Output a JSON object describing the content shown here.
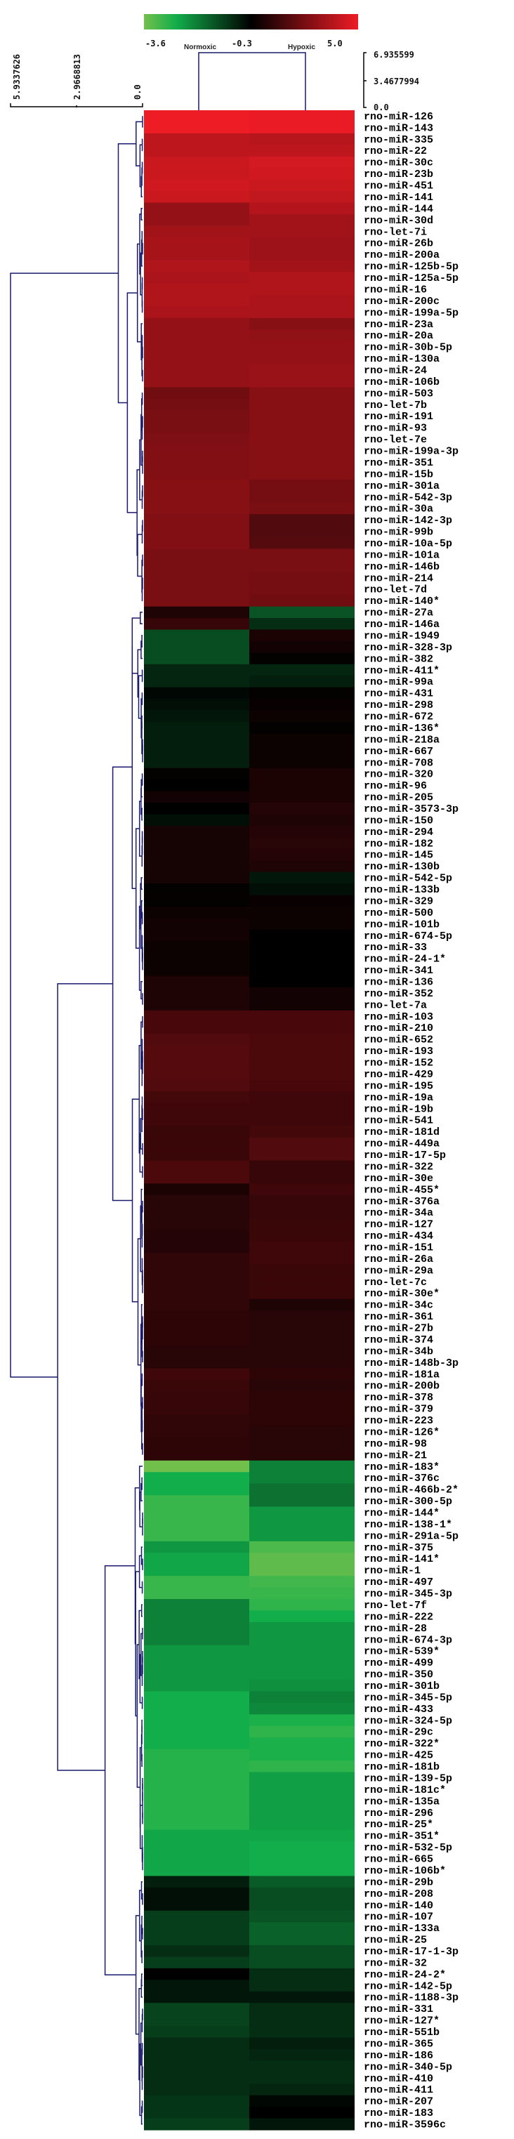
{
  "chart_data": {
    "type": "heatmap",
    "colorscale": {
      "min": -3.6,
      "mid": -0.3,
      "max": 5.0,
      "tick_labels": [
        "-3.6",
        "-0.3",
        "5.0"
      ],
      "colors": {
        "low": "#72c04c",
        "low_mid": "#12ae4b",
        "mid": "#000000",
        "high": "#ee1c25"
      }
    },
    "columns": [
      "Normoxic",
      "Hypoxic"
    ],
    "row_dendrogram_scale": [
      "5.9337626",
      "2.9668813",
      "0.0"
    ],
    "column_dendrogram_scale": [
      "6.935599",
      "3.4677994",
      "0.0"
    ],
    "dendrogram_color": "#1a1a6e",
    "rows": [
      [
        "rno-miR-126",
        5.0,
        4.9
      ],
      [
        "rno-miR-143",
        5.0,
        4.9
      ],
      [
        "rno-miR-335",
        3.9,
        3.8
      ],
      [
        "rno-miR-22",
        3.9,
        3.9
      ],
      [
        "rno-miR-30c",
        4.2,
        4.4
      ],
      [
        "rno-miR-23b",
        4.2,
        4.3
      ],
      [
        "rno-miR-451",
        4.3,
        4.2
      ],
      [
        "rno-miR-141",
        4.2,
        4.0
      ],
      [
        "rno-miR-144",
        3.0,
        3.7
      ],
      [
        "rno-miR-30d",
        3.0,
        3.3
      ],
      [
        "rno-let-7i",
        3.3,
        3.3
      ],
      [
        "rno-miR-26b",
        3.4,
        3.2
      ],
      [
        "rno-miR-200a",
        3.4,
        3.2
      ],
      [
        "rno-miR-125b-5p",
        3.6,
        3.3
      ],
      [
        "rno-miR-125a-5p",
        3.5,
        3.6
      ],
      [
        "rno-miR-16",
        3.6,
        3.6
      ],
      [
        "rno-miR-200c",
        3.6,
        3.5
      ],
      [
        "rno-miR-199a-5p",
        3.5,
        3.5
      ],
      [
        "rno-miR-23a",
        3.0,
        2.7
      ],
      [
        "rno-miR-20a",
        3.0,
        2.9
      ],
      [
        "rno-miR-30b-5p",
        3.0,
        3.0
      ],
      [
        "rno-miR-130a",
        3.0,
        3.0
      ],
      [
        "rno-miR-24",
        3.0,
        3.1
      ],
      [
        "rno-miR-106b",
        3.0,
        3.1
      ],
      [
        "rno-miR-503",
        2.2,
        2.7
      ],
      [
        "rno-let-7b",
        2.3,
        2.7
      ],
      [
        "rno-miR-191",
        2.4,
        2.7
      ],
      [
        "rno-miR-93",
        2.4,
        2.7
      ],
      [
        "rno-let-7e",
        2.5,
        2.7
      ],
      [
        "rno-miR-199a-3p",
        2.6,
        2.7
      ],
      [
        "rno-miR-351",
        2.6,
        2.7
      ],
      [
        "rno-miR-15b",
        2.6,
        2.7
      ],
      [
        "rno-miR-301a",
        2.7,
        2.3
      ],
      [
        "rno-miR-542-3p",
        2.7,
        2.3
      ],
      [
        "rno-miR-30a",
        2.7,
        2.4
      ],
      [
        "rno-miR-142-3p",
        2.6,
        1.5
      ],
      [
        "rno-miR-99b",
        2.6,
        1.5
      ],
      [
        "rno-miR-10a-5p",
        2.6,
        1.6
      ],
      [
        "rno-miR-101a",
        2.4,
        2.4
      ],
      [
        "rno-miR-146b",
        2.4,
        2.4
      ],
      [
        "rno-miR-214",
        2.4,
        2.3
      ],
      [
        "rno-let-7d",
        2.4,
        2.3
      ],
      [
        "rno-miR-140*",
        2.4,
        2.2
      ],
      [
        "rno-miR-27a",
        0.4,
        -1.4
      ],
      [
        "rno-miR-146a",
        0.9,
        -0.9
      ],
      [
        "rno-miR-1949",
        -1.3,
        0.3
      ],
      [
        "rno-miR-328-3p",
        -1.3,
        0.1
      ],
      [
        "rno-miR-382",
        -1.3,
        -0.2
      ],
      [
        "rno-miR-411*",
        -0.8,
        -0.8
      ],
      [
        "rno-miR-99a",
        -0.8,
        -0.7
      ],
      [
        "rno-miR-431",
        -0.4,
        -0.2
      ],
      [
        "rno-miR-298",
        -0.5,
        -0.1
      ],
      [
        "rno-miR-672",
        -0.6,
        0.0
      ],
      [
        "rno-miR-136*",
        -0.7,
        -0.2
      ],
      [
        "rno-miR-218a",
        -0.7,
        0.0
      ],
      [
        "rno-miR-667",
        -0.7,
        0.0
      ],
      [
        "rno-miR-708",
        -0.7,
        0.0
      ],
      [
        "rno-miR-320",
        -0.2,
        0.3
      ],
      [
        "rno-miR-96",
        -0.3,
        0.3
      ],
      [
        "rno-miR-205",
        0.1,
        0.3
      ],
      [
        "rno-miR-3573-3p",
        -0.3,
        0.5
      ],
      [
        "rno-miR-150",
        -0.5,
        0.4
      ],
      [
        "rno-miR-294",
        0.2,
        0.5
      ],
      [
        "rno-miR-182",
        0.2,
        0.6
      ],
      [
        "rno-miR-145",
        0.2,
        0.5
      ],
      [
        "rno-miR-130b",
        0.2,
        0.4
      ],
      [
        "rno-miR-542-5p",
        0.2,
        -0.6
      ],
      [
        "rno-miR-133b",
        -0.2,
        -0.5
      ],
      [
        "rno-miR-329",
        -0.2,
        -0.1
      ],
      [
        "rno-miR-500",
        0.0,
        0.0
      ],
      [
        "rno-miR-101b",
        0.1,
        0.0
      ],
      [
        "rno-miR-674-5p",
        0.1,
        -0.3
      ],
      [
        "rno-miR-33",
        0.0,
        -0.3
      ],
      [
        "rno-miR-24-1*",
        0.0,
        -0.3
      ],
      [
        "rno-miR-341",
        0.0,
        -0.3
      ],
      [
        "rno-miR-136",
        0.4,
        -0.3
      ],
      [
        "rno-miR-352",
        0.4,
        0.1
      ],
      [
        "rno-let-7a",
        0.4,
        0.1
      ],
      [
        "rno-miR-103",
        1.3,
        1.3
      ],
      [
        "rno-miR-210",
        1.3,
        1.3
      ],
      [
        "rno-miR-652",
        1.5,
        1.4
      ],
      [
        "rno-miR-193",
        1.6,
        1.4
      ],
      [
        "rno-miR-152",
        1.6,
        1.4
      ],
      [
        "rno-miR-429",
        1.6,
        1.4
      ],
      [
        "rno-miR-195",
        1.5,
        1.3
      ],
      [
        "rno-miR-19a",
        1.2,
        1.1
      ],
      [
        "rno-miR-19b",
        1.1,
        1.1
      ],
      [
        "rno-miR-541",
        1.1,
        1.1
      ],
      [
        "rno-miR-181d",
        1.0,
        1.2
      ],
      [
        "rno-miR-449a",
        1.0,
        1.5
      ],
      [
        "rno-miR-17-5p",
        1.0,
        1.5
      ],
      [
        "rno-miR-322",
        1.4,
        0.9
      ],
      [
        "rno-miR-30e",
        1.4,
        0.9
      ],
      [
        "rno-miR-455*",
        0.3,
        1.1
      ],
      [
        "rno-miR-376a",
        0.6,
        0.9
      ],
      [
        "rno-miR-34a",
        0.6,
        0.9
      ],
      [
        "rno-miR-127",
        0.6,
        1.0
      ],
      [
        "rno-miR-434",
        0.5,
        1.0
      ],
      [
        "rno-miR-151",
        0.5,
        1.1
      ],
      [
        "rno-miR-26a",
        0.8,
        1.1
      ],
      [
        "rno-miR-29a",
        0.8,
        1.0
      ],
      [
        "rno-let-7c",
        0.8,
        1.0
      ],
      [
        "rno-miR-30e*",
        0.8,
        1.0
      ],
      [
        "rno-miR-34c",
        0.8,
        0.4
      ],
      [
        "rno-miR-361",
        0.7,
        0.6
      ],
      [
        "rno-miR-27b",
        0.7,
        0.6
      ],
      [
        "rno-miR-374",
        0.7,
        0.6
      ],
      [
        "rno-miR-34b",
        0.6,
        0.6
      ],
      [
        "rno-miR-148b-3p",
        0.6,
        0.6
      ],
      [
        "rno-miR-181a",
        1.1,
        0.7
      ],
      [
        "rno-miR-200b",
        1.0,
        0.6
      ],
      [
        "rno-miR-378",
        0.9,
        0.7
      ],
      [
        "rno-miR-379",
        0.9,
        0.7
      ],
      [
        "rno-miR-223",
        0.8,
        0.7
      ],
      [
        "rno-miR-126*",
        0.8,
        0.6
      ],
      [
        "rno-miR-98",
        0.7,
        0.6
      ],
      [
        "rno-miR-21",
        0.7,
        0.6
      ],
      [
        "rno-miR-183*",
        -3.6,
        -2.0
      ],
      [
        "rno-miR-376c",
        -2.6,
        -2.0
      ],
      [
        "rno-miR-466b-2*",
        -2.6,
        -1.8
      ],
      [
        "rno-miR-300-5p",
        -3.0,
        -1.8
      ],
      [
        "rno-miR-144*",
        -3.0,
        -2.3
      ],
      [
        "rno-miR-138-1*",
        -3.0,
        -2.3
      ],
      [
        "rno-miR-291a-5p",
        -3.0,
        -2.3
      ],
      [
        "rno-miR-375",
        -2.3,
        -3.2
      ],
      [
        "rno-miR-141*",
        -2.5,
        -3.4
      ],
      [
        "rno-miR-1",
        -2.5,
        -3.4
      ],
      [
        "rno-miR-497",
        -3.0,
        -3.1
      ],
      [
        "rno-miR-345-3p",
        -3.0,
        -3.0
      ],
      [
        "rno-let-7f",
        -2.0,
        -2.9
      ],
      [
        "rno-miR-222",
        -2.0,
        -2.6
      ],
      [
        "rno-miR-28",
        -2.0,
        -2.3
      ],
      [
        "rno-miR-674-3p",
        -2.0,
        -2.3
      ],
      [
        "rno-miR-539*",
        -2.3,
        -2.3
      ],
      [
        "rno-miR-499",
        -2.3,
        -2.3
      ],
      [
        "rno-miR-350",
        -2.3,
        -2.3
      ],
      [
        "rno-miR-301b",
        -2.3,
        -2.2
      ],
      [
        "rno-miR-345-5p",
        -2.6,
        -2.0
      ],
      [
        "rno-miR-433",
        -2.6,
        -2.1
      ],
      [
        "rno-miR-324-5p",
        -2.6,
        -2.7
      ],
      [
        "rno-miR-29c",
        -2.6,
        -2.9
      ],
      [
        "rno-miR-322*",
        -2.6,
        -2.7
      ],
      [
        "rno-miR-425",
        -2.8,
        -2.7
      ],
      [
        "rno-miR-181b",
        -2.8,
        -2.9
      ],
      [
        "rno-miR-139-5p",
        -2.8,
        -2.4
      ],
      [
        "rno-miR-181c*",
        -2.8,
        -2.4
      ],
      [
        "rno-miR-135a",
        -2.8,
        -2.4
      ],
      [
        "rno-miR-296",
        -2.8,
        -2.4
      ],
      [
        "rno-miR-25*",
        -2.8,
        -2.4
      ],
      [
        "rno-miR-351*",
        -2.5,
        -2.5
      ],
      [
        "rno-miR-532-5p",
        -2.5,
        -2.6
      ],
      [
        "rno-miR-665",
        -2.5,
        -2.6
      ],
      [
        "rno-miR-106b*",
        -2.5,
        -2.6
      ],
      [
        "rno-miR-29b",
        -0.7,
        -1.5
      ],
      [
        "rno-miR-208",
        -0.5,
        -1.3
      ],
      [
        "rno-miR-140",
        -0.5,
        -1.3
      ],
      [
        "rno-miR-107",
        -1.1,
        -1.4
      ],
      [
        "rno-miR-133a",
        -1.1,
        -1.6
      ],
      [
        "rno-miR-25",
        -1.1,
        -1.6
      ],
      [
        "rno-miR-17-1-3p",
        -0.9,
        -1.3
      ],
      [
        "rno-miR-32",
        -1.1,
        -1.3
      ],
      [
        "rno-miR-24-2*",
        -0.3,
        -0.9
      ],
      [
        "rno-miR-142-5p",
        -0.6,
        -0.9
      ],
      [
        "rno-miR-1188-3p",
        -0.6,
        -0.6
      ],
      [
        "rno-miR-331",
        -1.2,
        -0.9
      ],
      [
        "rno-miR-127*",
        -1.2,
        -0.9
      ],
      [
        "rno-miR-551b",
        -1.1,
        -0.9
      ],
      [
        "rno-miR-365",
        -0.9,
        -0.7
      ],
      [
        "rno-miR-186",
        -0.9,
        -0.8
      ],
      [
        "rno-miR-340-5p",
        -0.9,
        -0.9
      ],
      [
        "rno-miR-410",
        -0.9,
        -0.9
      ],
      [
        "rno-miR-411",
        -0.9,
        -0.8
      ],
      [
        "rno-miR-207",
        -1.0,
        -0.4
      ],
      [
        "rno-miR-183",
        -1.0,
        -0.3
      ],
      [
        "rno-miR-3596c",
        -1.1,
        -0.6
      ]
    ]
  }
}
